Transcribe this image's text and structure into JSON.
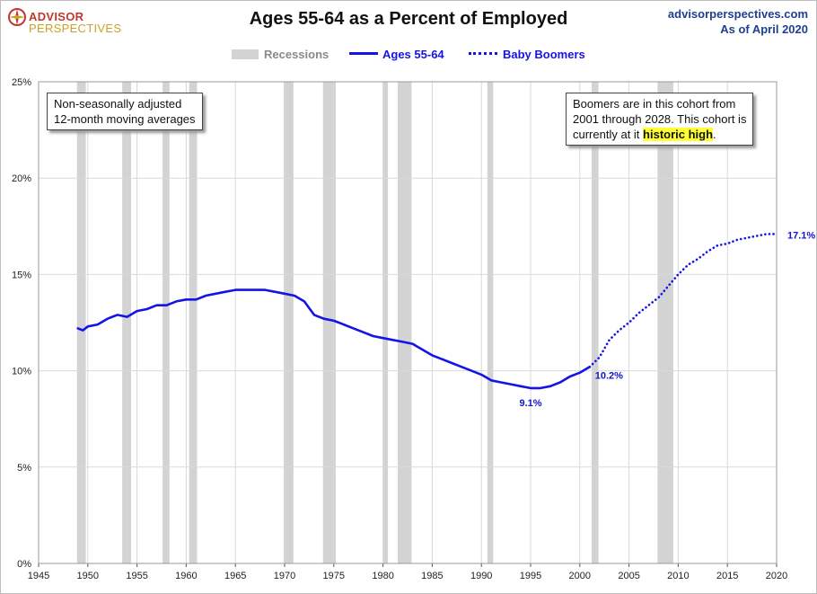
{
  "header": {
    "logo_line1": "ADVISOR",
    "logo_line2": "PERSPECTIVES",
    "title": "Ages 55-64 as a Percent of Employed",
    "site": "advisorperspectives.com",
    "as_of": "As of April 2020"
  },
  "legend": {
    "recessions": "Recessions",
    "ages": "Ages 55-64",
    "boomers": "Baby Boomers"
  },
  "notes": {
    "left_line1": "Non-seasonally adjusted",
    "left_line2": "12-month moving averages",
    "right_line1": "Boomers are in this cohort from",
    "right_line2": "2001  through 2028.  This cohort is",
    "right_line3_pre": "currently at it ",
    "right_line3_hl": "historic high",
    "right_line3_post": "."
  },
  "colors": {
    "series": "#1414e6",
    "recession": "#d3d3d3",
    "grid": "#d9d9d9",
    "label": "#1414c8"
  },
  "chart_data": {
    "type": "line",
    "title": "Ages 55-64 as a Percent of Employed",
    "xlim": [
      1945,
      2020
    ],
    "ylim": [
      0,
      25
    ],
    "x_ticks": [
      "1945",
      "1950",
      "1955",
      "1960",
      "1965",
      "1970",
      "1975",
      "1980",
      "1985",
      "1990",
      "1995",
      "2000",
      "2005",
      "2010",
      "2015",
      "2020"
    ],
    "y_ticks": [
      "0%",
      "5%",
      "10%",
      "15%",
      "20%",
      "25%"
    ],
    "grid": true,
    "legend_position": "top-center",
    "recessions": [
      [
        1948.9,
        1949.8
      ],
      [
        1953.5,
        1954.4
      ],
      [
        1957.6,
        1958.3
      ],
      [
        1960.3,
        1961.1
      ],
      [
        1969.9,
        1970.9
      ],
      [
        1973.9,
        1975.2
      ],
      [
        1980.0,
        1980.5
      ],
      [
        1981.5,
        1982.9
      ],
      [
        1990.6,
        1991.2
      ],
      [
        2001.2,
        2001.9
      ],
      [
        2007.9,
        2009.5
      ]
    ],
    "series": [
      {
        "name": "Ages 55-64",
        "style": "solid",
        "x": [
          1949,
          1949.5,
          1950,
          1951,
          1952,
          1953,
          1954,
          1955,
          1956,
          1957,
          1958,
          1959,
          1960,
          1961,
          1962,
          1963,
          1964,
          1965,
          1966,
          1967,
          1968,
          1969,
          1970,
          1971,
          1972,
          1973,
          1974,
          1975,
          1976,
          1977,
          1978,
          1979,
          1980,
          1981,
          1982,
          1983,
          1984,
          1985,
          1986,
          1987,
          1988,
          1989,
          1990,
          1991,
          1992,
          1993,
          1994,
          1995,
          1996,
          1997,
          1998,
          1999,
          2000,
          2001
        ],
        "y": [
          12.2,
          12.1,
          12.3,
          12.4,
          12.7,
          12.9,
          12.8,
          13.1,
          13.2,
          13.4,
          13.4,
          13.6,
          13.7,
          13.7,
          13.9,
          14.0,
          14.1,
          14.2,
          14.2,
          14.2,
          14.2,
          14.1,
          14.0,
          13.9,
          13.6,
          12.9,
          12.7,
          12.6,
          12.4,
          12.2,
          12.0,
          11.8,
          11.7,
          11.6,
          11.5,
          11.4,
          11.1,
          10.8,
          10.6,
          10.4,
          10.2,
          10.0,
          9.8,
          9.5,
          9.4,
          9.3,
          9.2,
          9.1,
          9.1,
          9.2,
          9.4,
          9.7,
          9.9,
          10.2
        ]
      },
      {
        "name": "Baby Boomers",
        "style": "dotted",
        "x": [
          2001,
          2002,
          2003,
          2004,
          2005,
          2006,
          2007,
          2008,
          2009,
          2010,
          2011,
          2012,
          2013,
          2014,
          2015,
          2016,
          2017,
          2018,
          2019,
          2020
        ],
        "y": [
          10.2,
          10.7,
          11.6,
          12.1,
          12.5,
          13.0,
          13.4,
          13.8,
          14.4,
          15.0,
          15.5,
          15.8,
          16.2,
          16.5,
          16.6,
          16.8,
          16.9,
          17.0,
          17.1,
          17.1
        ]
      }
    ],
    "annotations": [
      {
        "x": 1995,
        "y": 9.1,
        "label": "9.1%"
      },
      {
        "x": 2001,
        "y": 10.2,
        "label": "10.2%"
      },
      {
        "x": 2020,
        "y": 17.1,
        "label": "17.1%"
      }
    ]
  }
}
